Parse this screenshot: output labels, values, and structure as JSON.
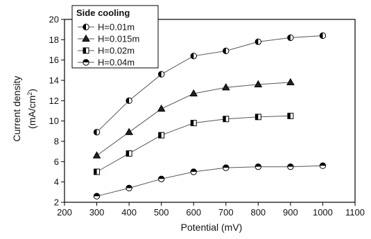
{
  "chart_data": {
    "type": "line",
    "xlabel": "Potential (mV)",
    "ylabel_line1": "Current density",
    "ylabel_line2_main": "(mA/cm",
    "ylabel_line2_sup": "2",
    "ylabel_line2_end": ")",
    "xlim": [
      200,
      1100
    ],
    "ylim": [
      2,
      20
    ],
    "xticks": [
      200,
      300,
      400,
      500,
      600,
      700,
      800,
      900,
      1000,
      1100
    ],
    "yticks": [
      2,
      4,
      6,
      8,
      10,
      12,
      14,
      16,
      18,
      20
    ],
    "legend_title": "Side cooling",
    "legend_position": "top-left",
    "series": [
      {
        "name": "H=0.01m",
        "marker": "circle-half-left",
        "x": [
          300,
          400,
          500,
          600,
          700,
          800,
          900,
          1000
        ],
        "values": [
          8.9,
          12.0,
          14.6,
          16.4,
          16.9,
          17.8,
          18.2,
          18.4
        ]
      },
      {
        "name": "H=0.015m",
        "marker": "triangle",
        "x": [
          300,
          400,
          500,
          600,
          700,
          800,
          900
        ],
        "values": [
          6.6,
          8.9,
          11.2,
          12.7,
          13.3,
          13.6,
          13.8
        ]
      },
      {
        "name": "H=0.02m",
        "marker": "square-half",
        "x": [
          300,
          400,
          500,
          600,
          700,
          800,
          900
        ],
        "values": [
          5.0,
          6.8,
          8.6,
          9.8,
          10.2,
          10.4,
          10.5
        ]
      },
      {
        "name": "H=0.04m",
        "marker": "circle-half-top",
        "x": [
          300,
          400,
          500,
          600,
          700,
          800,
          900,
          1000
        ],
        "values": [
          2.6,
          3.4,
          4.3,
          5.0,
          5.4,
          5.5,
          5.5,
          5.6
        ]
      }
    ]
  }
}
